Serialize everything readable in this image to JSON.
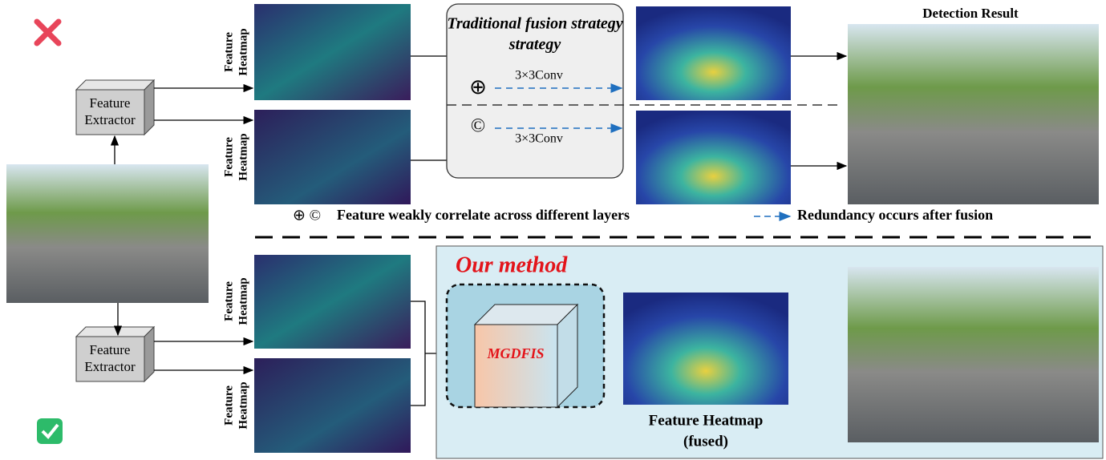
{
  "top": {
    "extractor": [
      "Feature",
      "Extractor"
    ],
    "heatmap_labels": [
      [
        "Feature",
        "Heatmap"
      ],
      [
        "Feature",
        "Heatmap"
      ]
    ],
    "fusion_title": [
      "Traditional fusion strategy",
      "strategy"
    ],
    "ops": [
      {
        "symbol": "⊕",
        "label": "3×3Conv"
      },
      {
        "symbol": "©",
        "label": "3×3Conv"
      }
    ],
    "detection_title": "Detection Result"
  },
  "legend": {
    "symbols": "⊕ ©",
    "correlation": "Feature weakly correlate across different layers",
    "redundancy": "Redundancy occurs after fusion"
  },
  "bottom": {
    "extractor": [
      "Feature",
      "Extractor"
    ],
    "heatmap_labels": [
      [
        "Feature",
        "Heatmap"
      ],
      [
        "Feature",
        "Heatmap"
      ]
    ],
    "method_title": "Our method",
    "module": "MGDFIS",
    "fused_label": [
      "Feature Heatmap",
      "(fused)"
    ]
  }
}
